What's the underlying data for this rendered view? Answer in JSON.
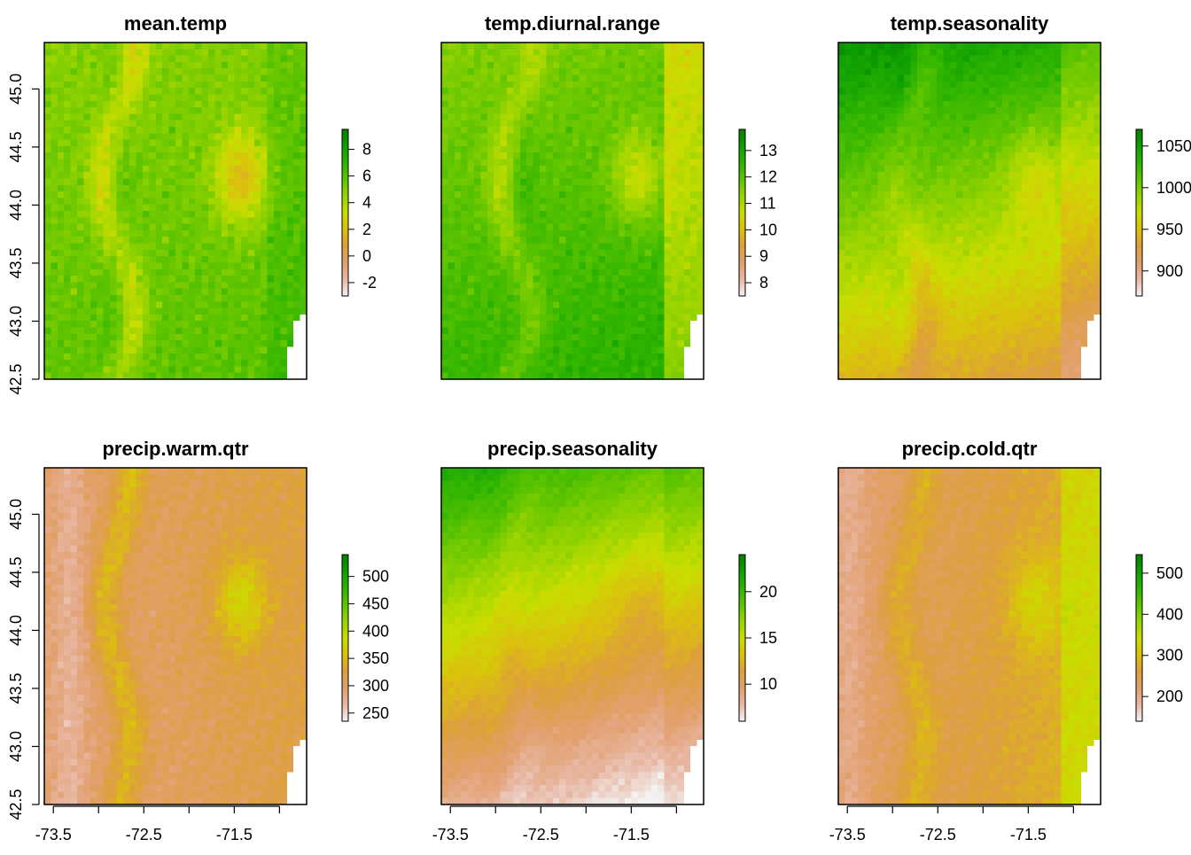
{
  "colors": {
    "ramp": [
      "#F2F2F2",
      "#E8B7A3",
      "#E2A06E",
      "#DDA03A",
      "#DBC00E",
      "#C9DD00",
      "#95D300",
      "#5FC400",
      "#2EB400",
      "#0C9E00",
      "#087D00"
    ]
  },
  "chart_data": [
    {
      "type": "heatmap",
      "title": "mean.temp",
      "xlim": [
        -73.6,
        -70.7
      ],
      "ylim": [
        42.5,
        45.4
      ],
      "y_ticks": [
        "42.5",
        "43.0",
        "43.5",
        "44.0",
        "44.5",
        "45.0"
      ],
      "x_ticks": [],
      "legend": {
        "position": "right",
        "range": [
          -3,
          9.5
        ],
        "ticks": [
          "-2",
          "0",
          "2",
          "4",
          "6",
          "8"
        ]
      },
      "field": {
        "base": 0.7,
        "y_gain": -0.08,
        "x_gain": 0.02,
        "relief": 0.7,
        "valley_x": 0.28,
        "east_boost": 0.05
      }
    },
    {
      "type": "heatmap",
      "title": "temp.diurnal.range",
      "xlim": [
        -73.6,
        -70.7
      ],
      "ylim": [
        42.5,
        45.4
      ],
      "y_ticks": [],
      "x_ticks": [],
      "legend": {
        "position": "right",
        "range": [
          7.5,
          13.8
        ],
        "ticks": [
          "8",
          "9",
          "10",
          "11",
          "12",
          "13"
        ]
      },
      "field": {
        "base": 0.78,
        "y_gain": -0.15,
        "x_gain": 0.05,
        "relief": 0.55,
        "valley_x": 0.3,
        "east_boost": -0.2
      }
    },
    {
      "type": "heatmap",
      "title": "temp.seasonality",
      "xlim": [
        -73.6,
        -70.7
      ],
      "ylim": [
        42.5,
        45.4
      ],
      "y_ticks": [],
      "x_ticks": [],
      "legend": {
        "position": "right",
        "range": [
          870,
          1070
        ],
        "ticks": [
          "900",
          "950",
          "1000",
          "1050"
        ]
      },
      "field": {
        "base": 0.38,
        "y_gain": 0.55,
        "x_gain": -0.12,
        "relief": 0.35,
        "valley_x": 0.25,
        "east_boost": -0.1
      }
    },
    {
      "type": "heatmap",
      "title": "precip.warm.qtr",
      "xlim": [
        -73.6,
        -70.7
      ],
      "ylim": [
        42.5,
        45.4
      ],
      "y_ticks": [
        "42.5",
        "43.0",
        "43.5",
        "44.0",
        "44.5",
        "45.0"
      ],
      "x_ticks": [
        "-73.5",
        "-72.5",
        "-71.5"
      ],
      "legend": {
        "position": "right",
        "range": [
          235,
          540
        ],
        "ticks": [
          "250",
          "300",
          "350",
          "400",
          "450",
          "500"
        ]
      },
      "field": {
        "base": 0.18,
        "y_gain": 0.02,
        "x_gain": 0.1,
        "relief": -0.5,
        "valley_x": 0.1,
        "east_boost": 0.0
      }
    },
    {
      "type": "heatmap",
      "title": "precip.seasonality",
      "xlim": [
        -73.6,
        -70.7
      ],
      "ylim": [
        42.5,
        45.4
      ],
      "y_ticks": [],
      "x_ticks": [
        "-73.5",
        "-72.5",
        "-71.5"
      ],
      "legend": {
        "position": "right",
        "range": [
          6,
          24
        ],
        "ticks": [
          "10",
          "15",
          "20"
        ]
      },
      "field": {
        "base": 0.15,
        "y_gain": 0.7,
        "x_gain": -0.2,
        "relief": 0.15,
        "valley_x": 0.2,
        "east_boost": 0.05
      }
    },
    {
      "type": "heatmap",
      "title": "precip.cold.qtr",
      "xlim": [
        -73.6,
        -70.7
      ],
      "ylim": [
        42.5,
        45.4
      ],
      "y_ticks": [],
      "x_ticks": [
        "-73.5",
        "-72.5",
        "-71.5"
      ],
      "legend": {
        "position": "right",
        "range": [
          140,
          545
        ],
        "ticks": [
          "200",
          "300",
          "400",
          "500"
        ]
      },
      "field": {
        "base": 0.2,
        "y_gain": -0.02,
        "x_gain": 0.18,
        "relief": -0.35,
        "valley_x": 0.05,
        "east_boost": 0.12
      }
    }
  ]
}
